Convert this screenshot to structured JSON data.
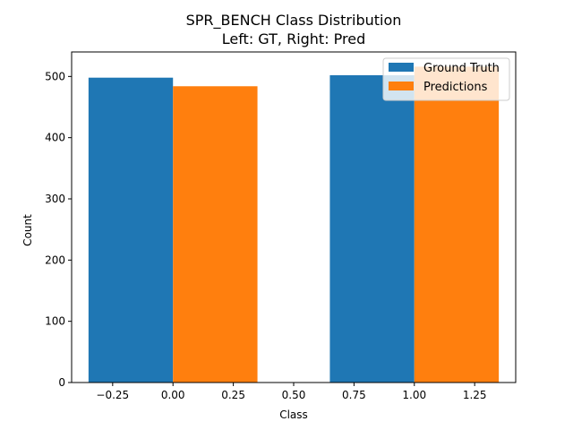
{
  "chart_data": {
    "type": "bar",
    "title": "SPR_BENCH Class Distribution",
    "subtitle": "Left: GT, Right: Pred",
    "xlabel": "Class",
    "ylabel": "Count",
    "xlim": [
      -0.42,
      1.42
    ],
    "ylim": [
      0,
      540
    ],
    "xticks": [
      -0.25,
      0.0,
      0.25,
      0.5,
      0.75,
      1.0,
      1.25
    ],
    "xtick_labels": [
      "−0.25",
      "0.00",
      "0.25",
      "0.50",
      "0.75",
      "1.00",
      "1.25"
    ],
    "yticks": [
      0,
      100,
      200,
      300,
      400,
      500
    ],
    "ytick_labels": [
      "0",
      "100",
      "200",
      "300",
      "400",
      "500"
    ],
    "bar_width": 0.35,
    "grid": false,
    "legend_position": "top-right",
    "series": [
      {
        "name": "Ground Truth",
        "color": "#1f77b4",
        "x": [
          -0.175,
          0.825
        ],
        "values": [
          498,
          502
        ]
      },
      {
        "name": "Predictions",
        "color": "#ff7f0e",
        "x": [
          0.175,
          1.175
        ],
        "values": [
          484,
          516
        ]
      }
    ]
  }
}
